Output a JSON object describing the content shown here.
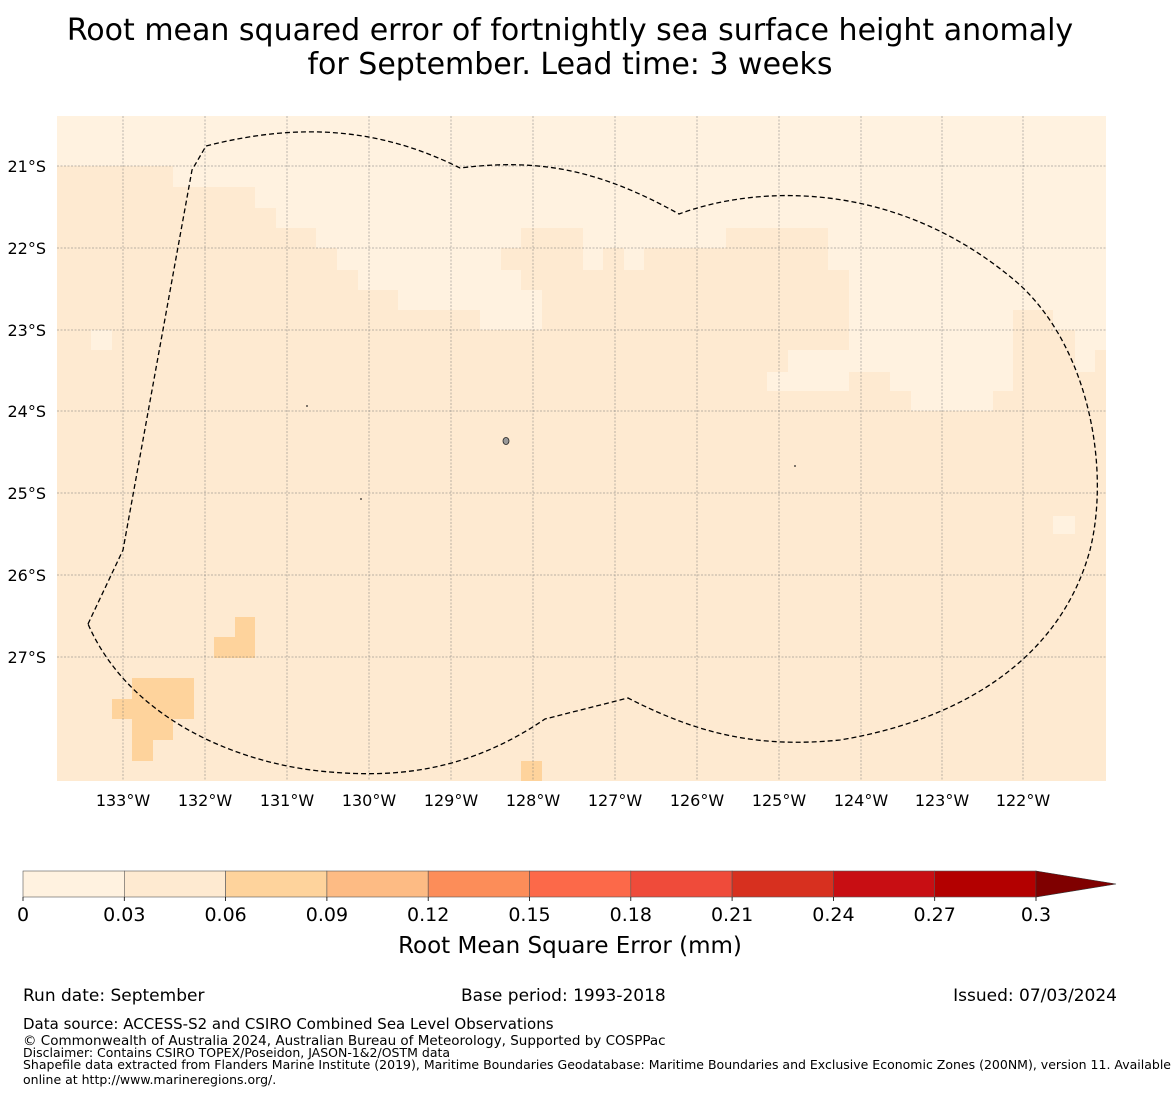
{
  "title": {
    "line1": "Root mean squared error of fortnightly sea surface height anomaly",
    "line2": "for September. Lead time: 3 weeks"
  },
  "map": {
    "lat_labels": [
      "21°S",
      "22°S",
      "23°S",
      "24°S",
      "25°S",
      "26°S",
      "27°S"
    ],
    "lon_labels": [
      "133°W",
      "132°W",
      "131°W",
      "130°W",
      "129°W",
      "128°W",
      "127°W",
      "126°W",
      "125°W",
      "124°W",
      "123°W",
      "122°W"
    ],
    "boundary": "dashed exclusive economic zone outline"
  },
  "colorbar": {
    "ticks": [
      "0",
      "0.03",
      "0.06",
      "0.09",
      "0.12",
      "0.15",
      "0.18",
      "0.21",
      "0.24",
      "0.27",
      "0.3"
    ],
    "colors": [
      "#fff2e0",
      "#feead1",
      "#fed39c",
      "#fdbb84",
      "#fc8d59",
      "#fc6949",
      "#ef4b3a",
      "#d7301f",
      "#c80e13",
      "#b30000",
      "#7f0000"
    ],
    "label": "Root Mean Square Error (mm)"
  },
  "footer": {
    "run_date": "Run date: September",
    "base_period": "Base period: 1993-2018",
    "issued": "Issued: 07/03/2024",
    "data_source": "Data source: ACCESS-S2 and CSIRO Combined Sea Level Observations",
    "copyright": "© Commonwealth of Australia 2024, Australian Bureau of Meteorology, Supported by COSPPac",
    "disclaimer": "Disclaimer: Contains CSIRO TOPEX/Poseidon, JASON-1&2/OSTM data",
    "shapefile_line1": "Shapefile data extracted from Flanders Marine Institute (2019), Maritime Boundaries Geodatabase: Maritime Boundaries and Exclusive Economic Zones (200NM), version 11. Available",
    "shapefile_line2": "online at http://www.marineregions.org/."
  }
}
